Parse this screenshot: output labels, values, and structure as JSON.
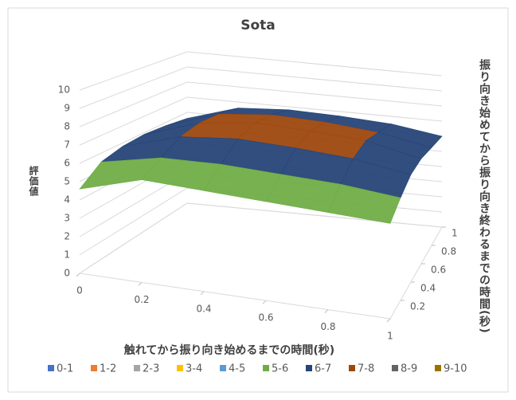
{
  "chart_data": {
    "type": "surface",
    "title": "Sota",
    "x_label": "触れてから振り向き始めるまでの時間(秒)",
    "y_label": "振り向き始めてから振り向き終わるまでの時間(秒)",
    "z_label": "評価値",
    "x": [
      0,
      0.2,
      0.4,
      0.6,
      0.8,
      1
    ],
    "y": [
      0,
      0.2,
      0.4,
      0.6,
      0.8,
      1
    ],
    "z": [
      [
        4.6,
        5.6,
        5.5,
        5.4,
        5.3,
        5.2
      ],
      [
        5.5,
        6.2,
        6.3,
        6.2,
        6.1,
        5.8
      ],
      [
        5.8,
        6.8,
        7.1,
        7.0,
        6.8,
        6.3
      ],
      [
        5.9,
        7.0,
        7.4,
        7.3,
        7.1,
        6.4
      ],
      [
        5.8,
        6.9,
        7.2,
        7.1,
        6.8,
        6.2
      ],
      [
        5.6,
        6.6,
        6.8,
        6.7,
        6.5,
        6.0
      ]
    ],
    "xlim": [
      0,
      1
    ],
    "xticks": [
      0,
      0.2,
      0.4,
      0.6,
      0.8,
      1
    ],
    "ylim": [
      0,
      1
    ],
    "yticks": [
      0.2,
      0.4,
      0.6,
      0.8,
      1
    ],
    "zlim": [
      0,
      10
    ],
    "zticks": [
      0,
      1,
      2,
      3,
      4,
      5,
      6,
      7,
      8,
      9,
      10
    ],
    "grid": true,
    "legend_position": "bottom",
    "bands": [
      {
        "name": "0-1",
        "color": "#4472c4"
      },
      {
        "name": "1-2",
        "color": "#ed7d31"
      },
      {
        "name": "2-3",
        "color": "#a5a5a5"
      },
      {
        "name": "3-4",
        "color": "#ffc000"
      },
      {
        "name": "4-5",
        "color": "#5b9bd5"
      },
      {
        "name": "5-6",
        "color": "#70ad47"
      },
      {
        "name": "6-7",
        "color": "#264478"
      },
      {
        "name": "7-8",
        "color": "#9e480e"
      },
      {
        "name": "8-9",
        "color": "#636363"
      },
      {
        "name": "9-10",
        "color": "#997300"
      }
    ]
  }
}
